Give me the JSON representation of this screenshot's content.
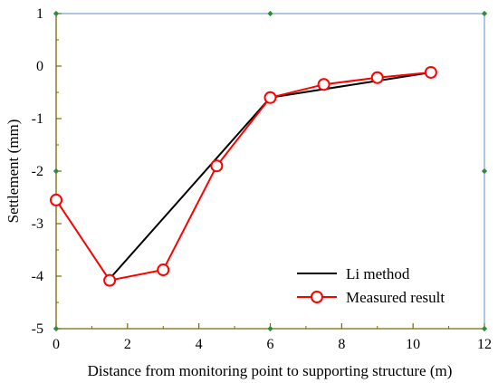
{
  "chart_data": {
    "type": "line",
    "title": "",
    "xlabel": "Distance from monitoring point to supporting structure (m)",
    "ylabel": "Settlement (mm)",
    "xlim": [
      0,
      12
    ],
    "ylim": [
      -5,
      1
    ],
    "x_ticks": [
      0,
      2,
      4,
      6,
      8,
      10,
      12
    ],
    "y_ticks": [
      1,
      0,
      -1,
      -2,
      -3,
      -4,
      -5
    ],
    "grid": false,
    "legend_position": "bottom-right",
    "series": [
      {
        "name": "Li method",
        "color": "#000000",
        "marker": "none",
        "x": [
          1.5,
          6,
          10.5
        ],
        "y": [
          -4.05,
          -0.6,
          -0.12
        ]
      },
      {
        "name": "Measured result",
        "color": "#ff0000",
        "marker": "open-circle",
        "x": [
          0,
          1.5,
          3,
          4.5,
          6,
          7.5,
          9,
          10.5
        ],
        "y": [
          -2.55,
          -4.08,
          -3.88,
          -1.9,
          -0.6,
          -0.35,
          -0.22,
          -0.12
        ]
      }
    ]
  }
}
